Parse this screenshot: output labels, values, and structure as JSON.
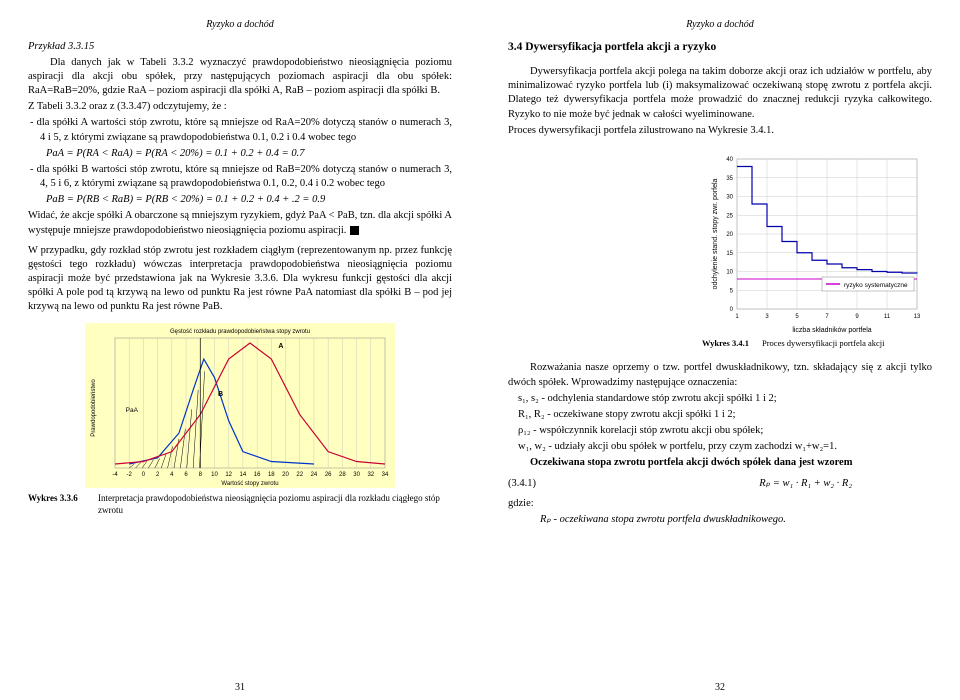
{
  "header_left": "Ryzyko a dochód",
  "header_right": "Ryzyko a dochód",
  "page_left_num": "31",
  "page_right_num": "32",
  "left": {
    "example_label": "Przykład 3.3.15",
    "p1": "Dla danych jak w Tabeli 3.3.2 wyznaczyć prawdopodobieństwo nieosiągnięcia poziomu aspiracji dla akcji obu spółek, przy następujących poziomach aspiracji dla obu spółek: RaA=RaB=20%, gdzie RaA – poziom aspiracji dla spółki A, RaB – poziom aspiracji dla spółki B.",
    "p2": "Z Tabeli 3.3.2 oraz z (3.3.47) odczytujemy, że :",
    "li1": "dla spółki A wartości stóp zwrotu, które są mniejsze od RaA=20% dotyczą stanów o numerach 3, 4 i 5, z którymi związane są prawdopodobieństwa 0.1, 0.2 i 0.4 wobec tego",
    "f1": "PaA = P(RA < RaA) = P(RA < 20%) = 0.1 + 0.2 + 0.4 = 0.7",
    "li2": "dla spółki B wartości stóp zwrotu, które są mniejsze od RaB=20% dotyczą stanów o numerach 3, 4, 5 i 6, z którymi związane są prawdopodobieństwa 0.1, 0.2, 0.4 i 0.2 wobec tego",
    "f2": "PaB = P(RB < RaB) = P(RB < 20%) = 0.1 + 0.2 + 0.4 + .2 = 0.9",
    "p3": "Widać, że akcje spółki A obarczone są mniejszym ryzykiem, gdyż PaA < PaB, tzn. dla akcji spółki A występuje mniejsze prawdopodobieństwo nieosiągnięcia poziomu aspiracji.",
    "p4": "W przypadku, gdy rozkład stóp zwrotu jest rozkładem ciągłym (reprezentowanym np. przez funkcję gęstości tego rozkładu) wówczas interpretacja prawdopodobieństwa nieosiągnięcia poziomu aspiracji może być przedstawiona jak na Wykresie 3.3.6. Dla wykresu funkcji gęstości dla akcji spółki A pole pod tą krzywą na lewo od punktu Ra jest równe PaA natomiast dla spółki B – pod jej krzywą na lewo od punktu Ra jest równe PaB.",
    "wykres_num": "Wykres 3.3.6",
    "wykres_text": "Interpretacja prawdopodobieństwa nieosiągnięcia poziomu aspiracji dla rozkładu ciągłego stóp zwrotu",
    "chart1": {
      "type": "line",
      "title": "Gęstość rozkładu prawdopodobieństwa stopy zwrotu",
      "xlabel": "Wartość stopy zwrotu",
      "ylabel": "Prawdopodobieństwo",
      "xlim": [
        -4,
        34
      ],
      "xtick_step": 2,
      "background": "#ffffc0",
      "grid_color": "#c0c0c0",
      "hatch_color": "#000000",
      "curve_A_color": "#cc0033",
      "curve_B_color": "#0033cc",
      "label_A": "A",
      "label_B": "B",
      "label_PaA_PaB": "PaA<PaB",
      "label_PaB": "PaB",
      "label_Ra": "Ra",
      "curve_A": [
        [
          -4,
          0
        ],
        [
          0,
          0.02
        ],
        [
          4,
          0.1
        ],
        [
          8,
          0.4
        ],
        [
          12,
          0.85
        ],
        [
          15,
          0.98
        ],
        [
          18,
          0.85
        ],
        [
          22,
          0.4
        ],
        [
          26,
          0.1
        ],
        [
          30,
          0.02
        ],
        [
          34,
          0
        ]
      ],
      "curve_B": [
        [
          -2,
          0
        ],
        [
          2,
          0.05
        ],
        [
          5,
          0.25
        ],
        [
          7,
          0.6
        ],
        [
          8.5,
          0.85
        ],
        [
          10,
          0.7
        ],
        [
          12,
          0.35
        ],
        [
          14,
          0.1
        ],
        [
          18,
          0.02
        ],
        [
          24,
          0
        ]
      ],
      "Ra": 8,
      "hatch_xrange": [
        -2,
        8
      ],
      "title_fontsize": 6,
      "label_fontsize": 6
    }
  },
  "right": {
    "section": "3.4  Dywersyfikacja portfela akcji a ryzyko",
    "p1": "Dywersyfikacja portfela akcji polega na takim doborze akcji oraz ich udziałów w portfelu, aby minimalizować ryzyko portfela lub (i) maksymalizować oczekiwaną stopę zwrotu z portfela akcji. Dlatego też dywersyfikacja portfela może prowadzić do znacznej redukcji ryzyka całkowitego. Ryzyko to nie może być jednak w całości wyeliminowane.",
    "p2": "Proces dywersyfikacji portfela zilustrowano na Wykresie 3.4.1.",
    "chart2": {
      "type": "step",
      "ylabel": "odchylenie stand. stopy zwr. porfela",
      "xlabel": "liczba składników portfela",
      "legend": "ryzyko systematyczne",
      "ylim": [
        0,
        40
      ],
      "ytick_step": 5,
      "xlim": [
        1,
        13
      ],
      "xtick_step": 2,
      "grid_color": "#c0c0c0",
      "line_color": "#0000aa",
      "sys_line_color": "#cc00cc",
      "sys_level": 8,
      "background": "#ffffff",
      "data": [
        [
          1,
          38
        ],
        [
          2,
          28
        ],
        [
          3,
          22
        ],
        [
          4,
          18
        ],
        [
          5,
          15
        ],
        [
          6,
          13
        ],
        [
          7,
          12
        ],
        [
          8,
          11
        ],
        [
          9,
          10.5
        ],
        [
          10,
          10
        ],
        [
          11,
          9.8
        ],
        [
          12,
          9.6
        ],
        [
          13,
          9.5
        ]
      ],
      "label_fontsize": 7
    },
    "chart2_cap_num": "Wykres 3.4.1",
    "chart2_cap_text": "Proces dywersyfikacji portfela akcji",
    "p3": "Rozważania nasze oprzemy o tzw. portfel dwuskładnikowy, tzn. składający się z akcji tylko dwóch spółek. Wprowadzimy następujące oznaczenia:",
    "l1": "s₁, s₂ - odchylenia standardowe stóp zwrotu akcji spółki 1 i 2;",
    "l2": "R₁, R₂ - oczekiwane stopy zwrotu akcji spółki 1 i 2;",
    "l3": "ρ₁₂ - współczynnik korelacji stóp zwrotu akcji obu spółek;",
    "l4": "w₁, w₂ - udziały akcji obu spółek w portfelu, przy czym zachodzi w₁+w₂=1.",
    "p4": "Oczekiwana stopa zwrotu portfela akcji dwóch spółek dana jest wzorem",
    "eqnum": "(3.4.1)",
    "eq": "Rₚ = w₁ · R₁ + w₂ · R₂",
    "p5": "gdzie:",
    "p6": "Rₚ - oczekiwana stopa zwrotu portfela dwuskładnikowego."
  }
}
